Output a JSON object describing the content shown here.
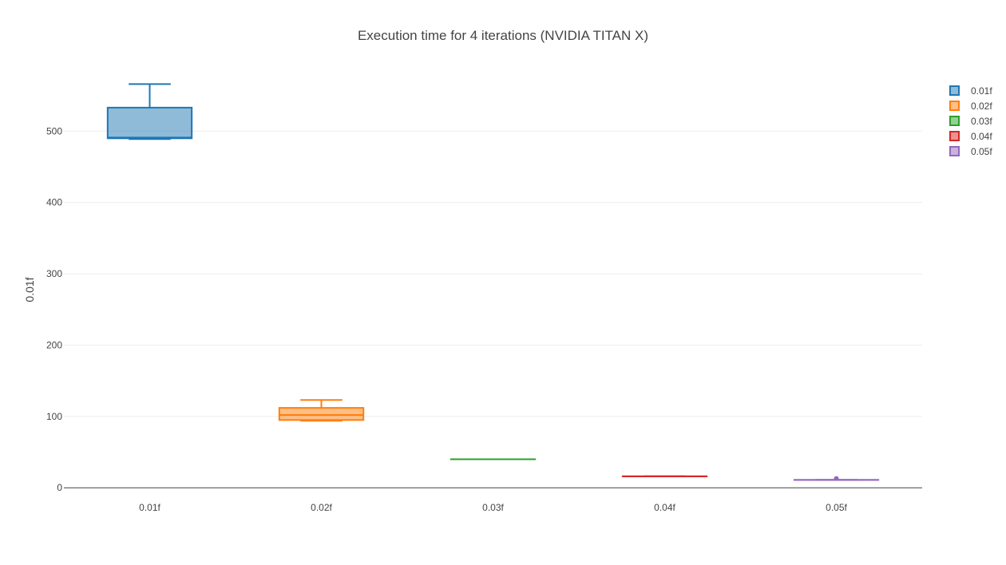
{
  "chart_data": {
    "type": "box",
    "title": "Execution time for 4 iterations (NVIDIA TITAN X)",
    "xlabel": "",
    "ylabel": "0.01f",
    "ylim": [
      -2,
      600
    ],
    "yticks": [
      0,
      100,
      200,
      300,
      400,
      500
    ],
    "grid": true,
    "legend_position": "top-right",
    "categories": [
      "0.01f",
      "0.02f",
      "0.03f",
      "0.04f",
      "0.05f"
    ],
    "series": [
      {
        "name": "0.01f",
        "color": "#1f77b4",
        "min": 489,
        "q1": 490,
        "median": 491,
        "q3": 533,
        "max": 566,
        "outliers": []
      },
      {
        "name": "0.02f",
        "color": "#ff7f0e",
        "min": 94,
        "q1": 95,
        "median": 102,
        "q3": 112,
        "max": 123,
        "outliers": []
      },
      {
        "name": "0.03f",
        "color": "#2ca02c",
        "min": 40,
        "q1": 40,
        "median": 40,
        "q3": 40,
        "max": 40,
        "outliers": []
      },
      {
        "name": "0.04f",
        "color": "#d62728",
        "min": 16,
        "q1": 16,
        "median": 16,
        "q3": 16,
        "max": 16,
        "outliers": []
      },
      {
        "name": "0.05f",
        "color": "#9467bd",
        "min": 11,
        "q1": 11,
        "median": 11,
        "q3": 11,
        "max": 11,
        "outliers": [
          13
        ]
      }
    ]
  }
}
